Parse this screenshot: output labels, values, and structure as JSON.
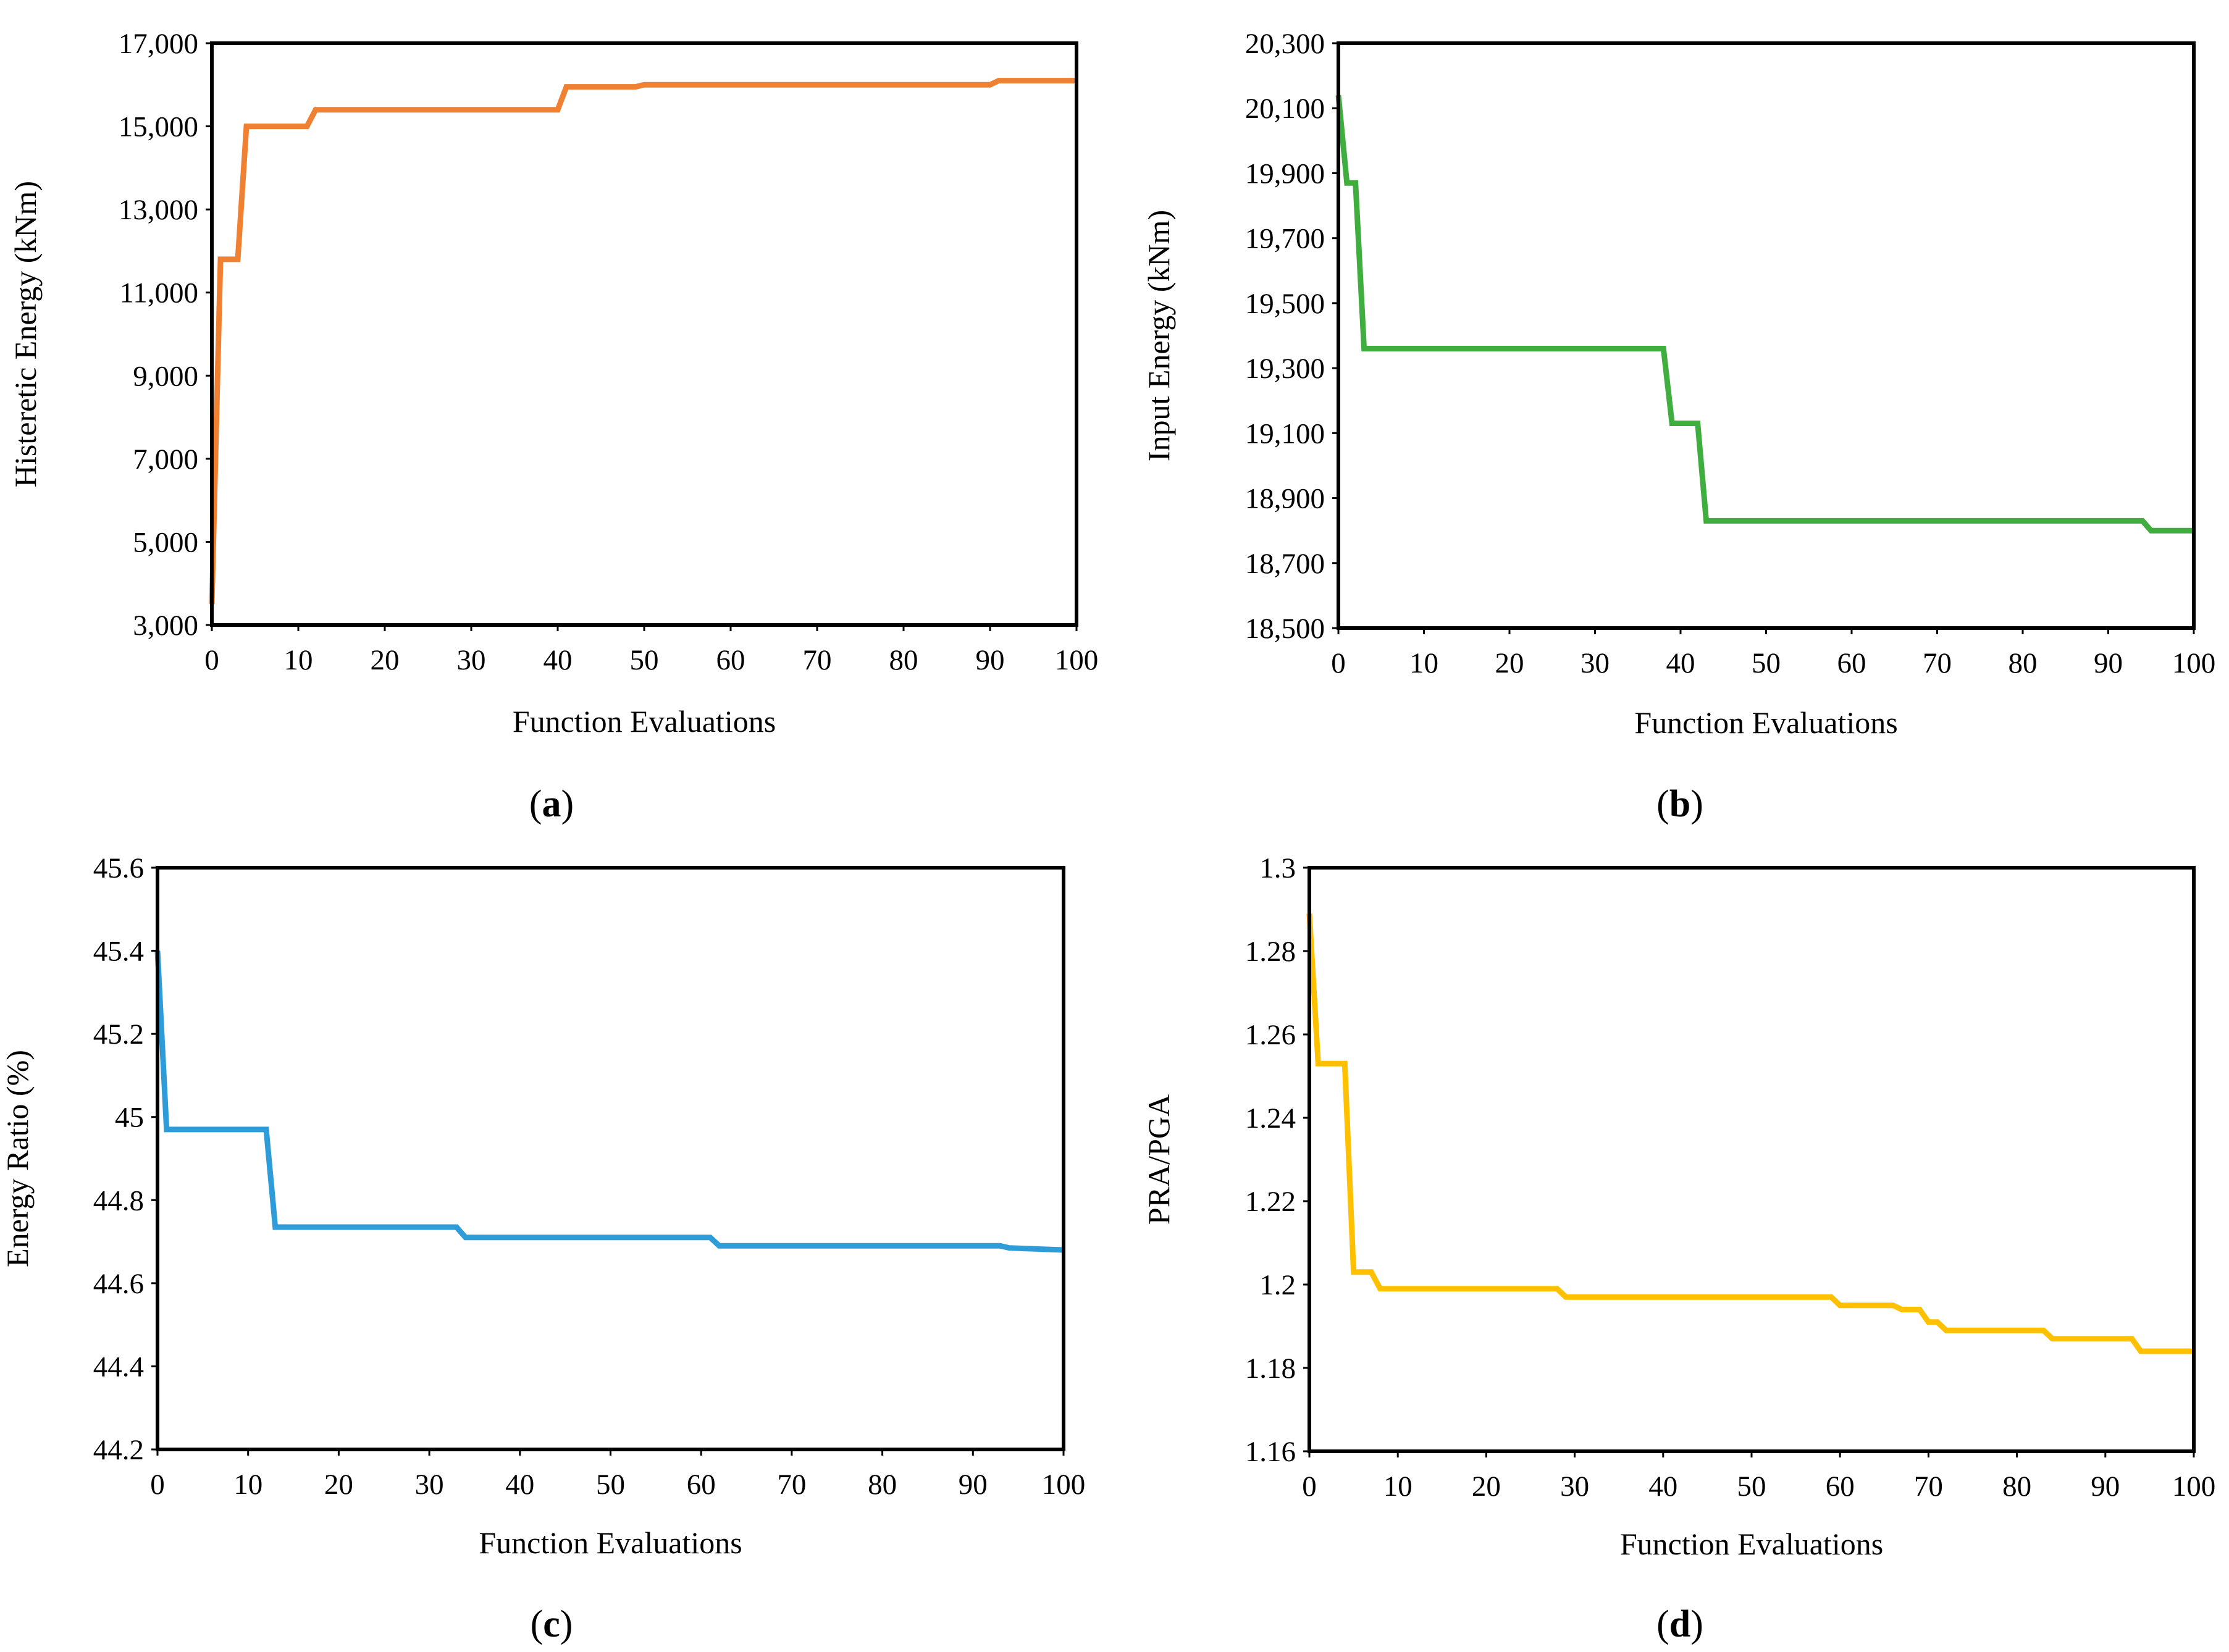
{
  "chart_data": [
    {
      "type": "line",
      "panel_label": "a",
      "xlabel": "Function Evaluations",
      "ylabel": "Histeretic Energy (kNm)",
      "xlim": [
        0,
        100
      ],
      "ylim": [
        3000,
        17000
      ],
      "xticks": [
        0,
        10,
        20,
        30,
        40,
        50,
        60,
        70,
        80,
        90,
        100
      ],
      "xtick_labels": [
        "0",
        "10",
        "20",
        "30",
        "40",
        "50",
        "60",
        "70",
        "80",
        "90",
        "100"
      ],
      "yticks": [
        3000,
        5000,
        7000,
        9000,
        11000,
        13000,
        15000,
        17000
      ],
      "ytick_labels": [
        "3,000",
        "5,000",
        "7,000",
        "9,000",
        "11,000",
        "13,000",
        "15,000",
        "17,000"
      ],
      "color": "#F08032",
      "series": [
        {
          "x": [
            0,
            1,
            3,
            4,
            11,
            12,
            40,
            41,
            49,
            50,
            90,
            91,
            100
          ],
          "y": [
            3500,
            11800,
            11800,
            15000,
            15000,
            15400,
            15400,
            15950,
            15950,
            16000,
            16000,
            16100,
            16100
          ]
        }
      ]
    },
    {
      "type": "line",
      "panel_label": "b",
      "xlabel": "Function Evaluations",
      "ylabel": "Input Energy (kNm)",
      "xlim": [
        0,
        100
      ],
      "ylim": [
        18500,
        20300
      ],
      "xticks": [
        0,
        10,
        20,
        30,
        40,
        50,
        60,
        70,
        80,
        90,
        100
      ],
      "xtick_labels": [
        "0",
        "10",
        "20",
        "30",
        "40",
        "50",
        "60",
        "70",
        "80",
        "90",
        "100"
      ],
      "yticks": [
        18500,
        18700,
        18900,
        19100,
        19300,
        19500,
        19700,
        19900,
        20100,
        20300
      ],
      "ytick_labels": [
        "18,500",
        "18,700",
        "18,900",
        "19,100",
        "19,300",
        "19,500",
        "19,700",
        "19,900",
        "20,100",
        "20,300"
      ],
      "color": "#3FAE3F",
      "series": [
        {
          "x": [
            0,
            1,
            2,
            3,
            38,
            39,
            42,
            43,
            94,
            95,
            100
          ],
          "y": [
            20140,
            19870,
            19870,
            19360,
            19360,
            19130,
            19130,
            18830,
            18830,
            18800,
            18800
          ]
        }
      ]
    },
    {
      "type": "line",
      "panel_label": "c",
      "xlabel": "Function Evaluations",
      "ylabel": "Energy Ratio (%)",
      "xlim": [
        0,
        100
      ],
      "ylim": [
        44.2,
        45.6
      ],
      "xticks": [
        0,
        10,
        20,
        30,
        40,
        50,
        60,
        70,
        80,
        90,
        100
      ],
      "xtick_labels": [
        "0",
        "10",
        "20",
        "30",
        "40",
        "50",
        "60",
        "70",
        "80",
        "90",
        "100"
      ],
      "yticks": [
        44.2,
        44.4,
        44.6,
        44.8,
        45.0,
        45.2,
        45.4,
        45.6
      ],
      "ytick_labels": [
        "44.2",
        "44.4",
        "44.6",
        "44.8",
        "45",
        "45.2",
        "45.4",
        "45.6"
      ],
      "color": "#2E9CD8",
      "series": [
        {
          "x": [
            0,
            1,
            12,
            13,
            33,
            34,
            61,
            62,
            93,
            94,
            100
          ],
          "y": [
            45.4,
            44.97,
            44.97,
            44.735,
            44.735,
            44.71,
            44.71,
            44.69,
            44.69,
            44.685,
            44.68
          ]
        }
      ]
    },
    {
      "type": "line",
      "panel_label": "d",
      "xlabel": "Function Evaluations",
      "ylabel": "PRA/PGA",
      "xlim": [
        0,
        100
      ],
      "ylim": [
        1.16,
        1.3
      ],
      "xticks": [
        0,
        10,
        20,
        30,
        40,
        50,
        60,
        70,
        80,
        90,
        100
      ],
      "xtick_labels": [
        "0",
        "10",
        "20",
        "30",
        "40",
        "50",
        "60",
        "70",
        "80",
        "90",
        "100"
      ],
      "yticks": [
        1.16,
        1.18,
        1.2,
        1.22,
        1.24,
        1.26,
        1.28,
        1.3
      ],
      "ytick_labels": [
        "1.16",
        "1.18",
        "1.2",
        "1.22",
        "1.24",
        "1.26",
        "1.28",
        "1.3"
      ],
      "color": "#FFC000",
      "series": [
        {
          "x": [
            0,
            1,
            4,
            5,
            7,
            8,
            28,
            29,
            59,
            60,
            66,
            67,
            69,
            70,
            71,
            72,
            83,
            84,
            93,
            94,
            100
          ],
          "y": [
            1.289,
            1.253,
            1.253,
            1.203,
            1.203,
            1.199,
            1.199,
            1.197,
            1.197,
            1.195,
            1.195,
            1.194,
            1.194,
            1.191,
            1.191,
            1.189,
            1.189,
            1.187,
            1.187,
            1.184,
            1.184
          ]
        }
      ]
    }
  ]
}
